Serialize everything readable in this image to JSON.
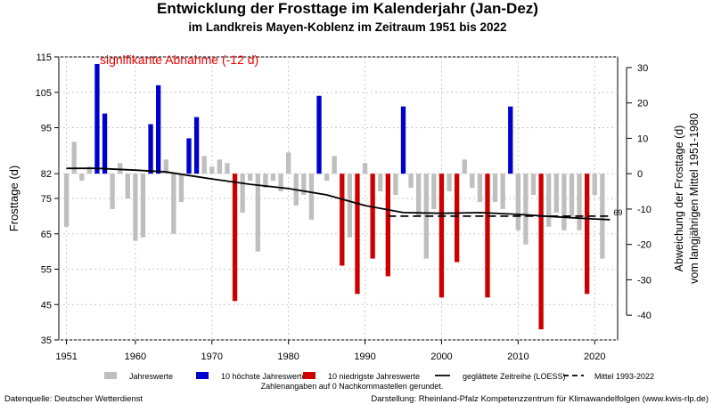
{
  "chart_data": {
    "type": "bar",
    "title": "Entwicklung der Frosttage im Kalenderjahr (Jan-Dez)",
    "subtitle": "im Landkreis Mayen-Koblenz im Zeitraum 1951 bis 2022",
    "annotation": "signifikante Abnahme (-12 d)",
    "ylabel_left": "Frosttage (d)",
    "ylabel_right_1": "Abweichung der Frosttage (d)",
    "ylabel_right_2": "vom langjährigen Mittel 1951-1980",
    "baseline": 82,
    "ylim": [
      35,
      115
    ],
    "right_ylim": [
      -47,
      33
    ],
    "xlim": [
      1950,
      2023
    ],
    "x_ticks": [
      "1951",
      "1960",
      "1970",
      "1980",
      "1990",
      "2000",
      "2010",
      "2020"
    ],
    "y_ticks_left": [
      "115",
      "105",
      "95",
      "82",
      "75",
      "65",
      "55",
      "45",
      "35"
    ],
    "y_ticks_right": [
      "30",
      "20",
      "10",
      "0",
      "-10",
      "-20",
      "-30",
      "-40"
    ],
    "end_label": "69",
    "years": [
      1951,
      1952,
      1953,
      1954,
      1955,
      1956,
      1957,
      1958,
      1959,
      1960,
      1961,
      1962,
      1963,
      1964,
      1965,
      1966,
      1967,
      1968,
      1969,
      1970,
      1971,
      1972,
      1973,
      1974,
      1975,
      1976,
      1977,
      1978,
      1979,
      1980,
      1981,
      1982,
      1983,
      1984,
      1985,
      1986,
      1987,
      1988,
      1989,
      1990,
      1991,
      1992,
      1993,
      1994,
      1995,
      1996,
      1997,
      1998,
      1999,
      2000,
      2001,
      2002,
      2003,
      2004,
      2005,
      2006,
      2007,
      2008,
      2009,
      2010,
      2011,
      2012,
      2013,
      2014,
      2015,
      2016,
      2017,
      2018,
      2019,
      2020,
      2021,
      2022
    ],
    "values": [
      67,
      91,
      80,
      84,
      113,
      99,
      72,
      85,
      75,
      63,
      64,
      96,
      107,
      86,
      65,
      74,
      92,
      98,
      87,
      84,
      86,
      85,
      46,
      71,
      80,
      60,
      78,
      80,
      77,
      88,
      73,
      76,
      69,
      104,
      80,
      87,
      56,
      64,
      48,
      85,
      58,
      77,
      53,
      76,
      101,
      78,
      70,
      58,
      72,
      47,
      77,
      57,
      86,
      78,
      74,
      47,
      74,
      72,
      101,
      66,
      62,
      76,
      38,
      67,
      71,
      66,
      70,
      66,
      48,
      76,
      58,
      0
    ],
    "categories_by_year": [
      "gray",
      "gray",
      "gray",
      "gray",
      "blue",
      "blue",
      "gray",
      "gray",
      "gray",
      "gray",
      "gray",
      "blue",
      "blue",
      "gray",
      "gray",
      "gray",
      "blue",
      "blue",
      "gray",
      "gray",
      "gray",
      "gray",
      "red",
      "gray",
      "gray",
      "gray",
      "gray",
      "gray",
      "gray",
      "gray",
      "gray",
      "gray",
      "gray",
      "blue",
      "gray",
      "gray",
      "red",
      "gray",
      "red",
      "gray",
      "red",
      "gray",
      "red",
      "gray",
      "blue",
      "gray",
      "gray",
      "gray",
      "gray",
      "red",
      "gray",
      "red",
      "gray",
      "gray",
      "gray",
      "red",
      "gray",
      "gray",
      "blue",
      "gray",
      "gray",
      "gray",
      "red",
      "gray",
      "gray",
      "gray",
      "gray",
      "gray",
      "red",
      "gray",
      "gray",
      "none"
    ],
    "loess": {
      "x": [
        1951,
        1955,
        1960,
        1964,
        1967,
        1970,
        1975,
        1980,
        1985,
        1990,
        1995,
        2000,
        2005,
        2010,
        2015,
        2020,
        2022
      ],
      "y": [
        83.5,
        83.5,
        83,
        82.5,
        81.5,
        80.5,
        79,
        77.8,
        76,
        73,
        71,
        70.8,
        71,
        70.5,
        69.8,
        69.2,
        69
      ]
    },
    "mean_1993_2022": {
      "x": [
        1993,
        2022
      ],
      "y": 70
    },
    "colors": {
      "gray": "#bfbfbf",
      "blue": "#0000cc",
      "red": "#cc0000"
    }
  },
  "legend": {
    "jahreswerte": "Jahreswerte",
    "hoechste": "10 höchste Jahreswerte",
    "niedrigste": "10 niedrigste Jahreswerte",
    "loess": "geglättete Zeitreihe (LOESS)",
    "mittel": "Mittel 1993-2022"
  },
  "note": "Zahlenangaben auf 0 Nachkommastellen gerundet.",
  "footer": {
    "left": "Datenquelle: Deutscher Wetterdienst",
    "right": "Darstellung: Rheinland-Pfalz Kompetenzzentrum für Klimawandelfolgen (www.kwis-rlp.de)"
  }
}
